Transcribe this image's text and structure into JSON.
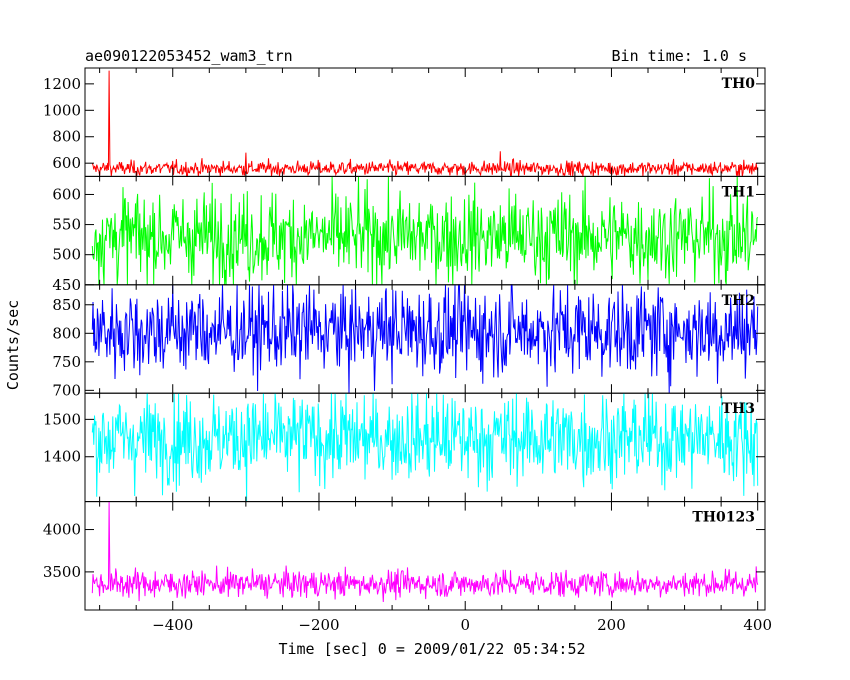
{
  "header": {
    "title": "ae090122053452_wam3_trn",
    "bin_time": "Bin time: 1.0 s"
  },
  "chart_data": {
    "type": "line",
    "xlabel": "Time [sec] 0 = 2009/01/22 05:34:52",
    "ylabel": "Counts/sec",
    "xlim": [
      -520,
      410
    ],
    "x_range": [
      -510,
      400
    ],
    "x_ticks": [
      -400,
      -200,
      0,
      200,
      400
    ],
    "x_tick_labels": [
      "−400",
      "−200",
      "0",
      "200",
      "400"
    ],
    "panels": [
      {
        "name": "TH0",
        "color": "#ff0000",
        "ylim": [
          500,
          1320
        ],
        "y_ticks": [
          600,
          800,
          1000,
          1200
        ],
        "mean": 560,
        "noise": 28,
        "spikes": [
          {
            "x": -487,
            "y": 1300
          },
          {
            "x": 48,
            "y": 690
          },
          {
            "x": -300,
            "y": 680
          }
        ]
      },
      {
        "name": "TH1",
        "color": "#00ff00",
        "ylim": [
          450,
          630
        ],
        "y_ticks": [
          450,
          500,
          550,
          600
        ],
        "mean": 530,
        "noise": 38,
        "spikes": []
      },
      {
        "name": "TH2",
        "color": "#0000ff",
        "ylim": [
          695,
          885
        ],
        "y_ticks": [
          700,
          750,
          800,
          850
        ],
        "mean": 805,
        "noise": 40,
        "spikes": []
      },
      {
        "name": "TH3",
        "color": "#00ffff",
        "ylim": [
          1280,
          1570
        ],
        "y_ticks": [
          1400,
          1500
        ],
        "mean": 1450,
        "noise": 60,
        "spikes": []
      },
      {
        "name": "TH0123",
        "color": "#ff00ff",
        "ylim": [
          3050,
          4330
        ],
        "y_ticks": [
          3500,
          4000
        ],
        "mean": 3360,
        "noise": 80,
        "spikes": [
          {
            "x": -487,
            "y": 4350
          }
        ]
      }
    ]
  }
}
